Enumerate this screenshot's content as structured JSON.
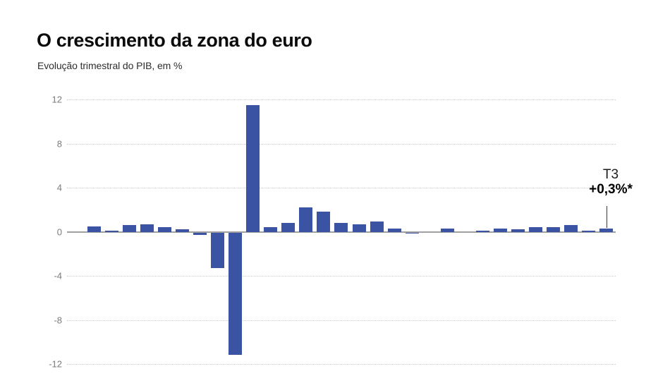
{
  "chart_data": {
    "type": "bar",
    "title": "O crescimento da zona do euro",
    "subtitle": "Evolução trimestral do PIB, em %",
    "unit": "%",
    "ylim": [
      -12,
      12
    ],
    "yticks": [
      12,
      8,
      4,
      0,
      -4,
      -8,
      -12
    ],
    "grid": "horizontal-dotted",
    "legend": "none",
    "x_axis_labels": "none",
    "values": [
      0.5,
      0.1,
      0.6,
      0.7,
      0.4,
      0.2,
      -0.2,
      -3.2,
      -11.1,
      11.5,
      0.4,
      0.8,
      2.2,
      1.8,
      0.8,
      0.7,
      0.9,
      0.3,
      -0.1,
      0.0,
      0.3,
      0.0,
      0.1,
      0.3,
      0.2,
      0.4,
      0.4,
      0.6,
      0.1,
      0.3
    ],
    "bar_color": "#3A54A3",
    "annotation": {
      "line1": "T3",
      "line2": "+0,3%*",
      "target_bar_index": 29
    }
  }
}
